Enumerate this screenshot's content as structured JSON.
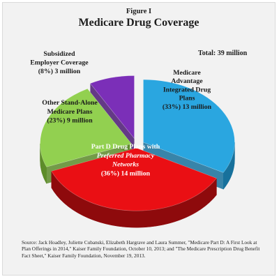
{
  "figure_label": "Figure I",
  "title": "Medicare Drug Coverage",
  "total_text": "Total: 39 million",
  "source_text": "Source: Jack Hoadley, Juliette Cubanski, Elizabeth Hargrave and Laura Summer, \"Medicare Part D: A First Look at Plan Offerings in 2014,\" Kaiser Family Foundation, October 10, 2013; and \"The Medicare Prescription Drug Benefit Fact Sheet,\" Kaiser Family Foundation, November 19, 2013.",
  "chart_data": {
    "type": "pie",
    "title": "Medicare Drug Coverage",
    "total": "Total: 39 million",
    "unit": "million",
    "slices": [
      {
        "key": "medicare-advantage",
        "label_lines": [
          "Medicare",
          "Advantage",
          "Integrated Drug",
          "Plans",
          "(33%) 13 million"
        ],
        "percent": 33,
        "value": 13,
        "color": "#2aa6e0",
        "side_color": "#17719c",
        "text_color": "#1a1a1a"
      },
      {
        "key": "part-d-preferred",
        "label_lines": [
          "Part D Drug Plans with",
          "Preferred Pharmacy",
          "Networks",
          "(36%) 14 million"
        ],
        "italic_lines": [
          1,
          2
        ],
        "percent": 36,
        "value": 14,
        "color": "#ea0f14",
        "side_color": "#8e0a0c",
        "text_color": "#ffffff"
      },
      {
        "key": "other-stand-alone",
        "label_lines": [
          "Other Stand-Alone",
          "Medicare Plans",
          "(23%) 9 million"
        ],
        "percent": 23,
        "value": 9,
        "color": "#92d050",
        "side_color": "#5d8c2a",
        "text_color": "#1a1a1a"
      },
      {
        "key": "subsidized-employer",
        "label_lines": [
          "Subsidized",
          "Employer Coverage",
          "(8%) 3 million"
        ],
        "percent": 8,
        "value": 3,
        "color": "#7b2fb8",
        "side_color": "#4b1a73",
        "text_color": "#1a1a1a"
      }
    ]
  }
}
